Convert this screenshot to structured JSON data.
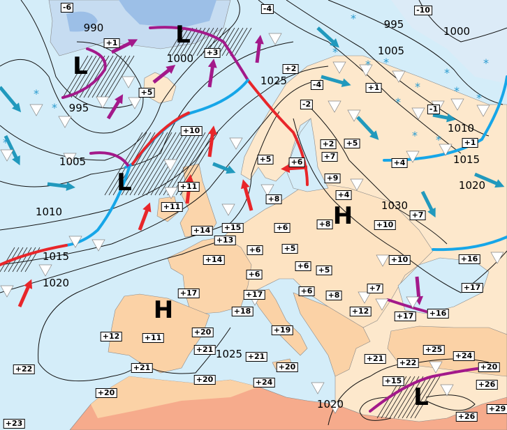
{
  "map": {
    "colors": {
      "sea": "#d4edf9",
      "land_north": "#fde8cc",
      "land_south": "#fbd2a6",
      "land_hot": "#f6ab8c",
      "ice": "#c6dcf1",
      "ice_deep": "#9cbfe7",
      "occluded_front": "#a3198a",
      "warm_front": "#e8262a",
      "cold_front": "#16a6e8",
      "wind_arrow": "#2199bd"
    },
    "pressure_centers": [
      "L",
      "L",
      "L",
      "H",
      "H",
      "L"
    ],
    "isobar_labels": [
      "990",
      "1000",
      "995",
      "1005",
      "1010",
      "1015",
      "1020",
      "1025",
      "995",
      "1000",
      "1005",
      "1010",
      "1015",
      "1020",
      "1030",
      "1025",
      "1020"
    ],
    "temperatures": [
      "-6",
      "+1",
      "+3",
      "+5",
      "+10",
      "+11",
      "+11",
      "-4",
      "-10",
      "+2",
      "-4",
      "+1",
      "-2",
      "-1",
      "+2",
      "+7",
      "+5",
      "+5",
      "+6",
      "+1",
      "+4",
      "+9",
      "+8",
      "+4",
      "+7",
      "+8",
      "+10",
      "+14",
      "+15",
      "+13",
      "+6",
      "+6",
      "+5",
      "+14",
      "+6",
      "+6",
      "+5",
      "+6",
      "+8",
      "+7",
      "+10",
      "+16",
      "+17",
      "+17",
      "+18",
      "+17",
      "+12",
      "+17",
      "+16",
      "+12",
      "+11",
      "+20",
      "+19",
      "+21",
      "+21",
      "+21",
      "+20",
      "+20",
      "+21",
      "+22",
      "+25",
      "+24",
      "+20",
      "+15",
      "+24",
      "+22",
      "+20",
      "+26",
      "+29",
      "+26",
      "+23"
    ],
    "symbols": {
      "shower": "shower-triangle-icon",
      "snow": "snowflake-icon",
      "wind": "wind-arrow-icon"
    }
  }
}
